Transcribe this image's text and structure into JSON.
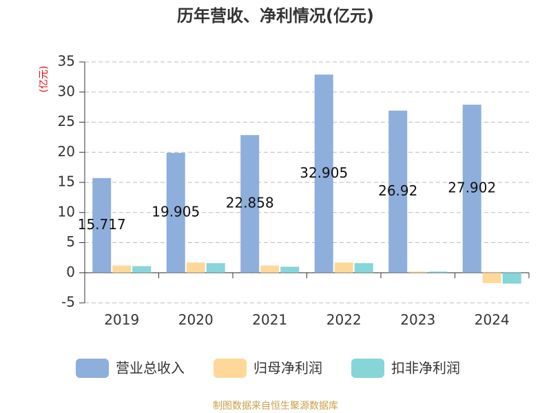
{
  "chart_data": {
    "type": "bar",
    "title": "历年营收、净利情况(亿元)",
    "y_label": "(亿元)",
    "categories": [
      "2019",
      "2020",
      "2021",
      "2022",
      "2023",
      "2024"
    ],
    "series": [
      {
        "name": "营业总收入",
        "color": "#8eaedb",
        "values": [
          15.717,
          19.905,
          22.858,
          32.905,
          26.92,
          27.902
        ]
      },
      {
        "name": "归母净利润",
        "color": "#fdd898",
        "values": [
          1.2,
          1.7,
          1.2,
          1.7,
          0.2,
          -1.7
        ]
      },
      {
        "name": "扣非净利润",
        "color": "#86d5d8",
        "values": [
          1.1,
          1.6,
          1.0,
          1.6,
          0.2,
          -1.8
        ]
      }
    ],
    "ylim": [
      -5,
      35
    ],
    "yticks": [
      -5,
      0,
      5,
      10,
      15,
      20,
      25,
      30,
      35
    ],
    "grid": true,
    "source": "制图数据来自恒生聚源数据库"
  }
}
